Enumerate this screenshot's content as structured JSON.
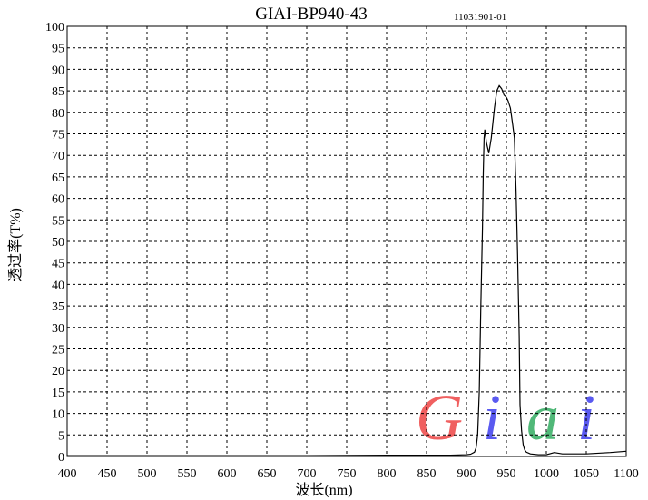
{
  "chart_data": {
    "type": "line",
    "title": "GIAI-BP940-43",
    "subtitle": "11031901-01",
    "xlabel": "波长(nm)",
    "ylabel": "透过率(T%)",
    "xlim": [
      400,
      1100
    ],
    "ylim": [
      0,
      100
    ],
    "xticks": [
      400,
      450,
      500,
      550,
      600,
      650,
      700,
      750,
      800,
      850,
      900,
      950,
      1000,
      1050,
      1100
    ],
    "yticks": [
      0,
      5,
      10,
      15,
      20,
      25,
      30,
      35,
      40,
      45,
      50,
      55,
      60,
      65,
      70,
      75,
      80,
      85,
      90,
      95,
      100
    ],
    "grid": true,
    "series": [
      {
        "x": [
          400,
          500,
          600,
          700,
          800,
          850,
          880,
          900,
          905,
          910,
          912,
          914,
          916,
          918,
          920,
          921,
          922,
          923,
          925,
          928,
          931,
          935,
          938,
          941,
          944,
          947,
          950,
          952,
          955,
          958,
          960,
          962,
          964,
          966,
          967,
          969,
          971,
          973,
          975,
          980,
          990,
          1000,
          1010,
          1020,
          1050,
          1080,
          1100
        ],
        "y": [
          0.2,
          0.2,
          0.2,
          0.2,
          0.3,
          0.3,
          0.3,
          0.4,
          0.5,
          1.0,
          2.0,
          5,
          15,
          35,
          53,
          66,
          74,
          76,
          73,
          70.5,
          74,
          81,
          85,
          86.2,
          85.5,
          84,
          83.5,
          82.7,
          81,
          77,
          74,
          62,
          47,
          28,
          12,
          6,
          2.7,
          1.5,
          1.0,
          0.6,
          0.4,
          0.4,
          0.9,
          0.6,
          0.6,
          0.9,
          1.2
        ],
        "color": "#000000"
      }
    ],
    "logo": {
      "text": "Giai",
      "colors": [
        "#f06060",
        "#5a5af0",
        "#50b878",
        "#5a5af0"
      ]
    }
  }
}
